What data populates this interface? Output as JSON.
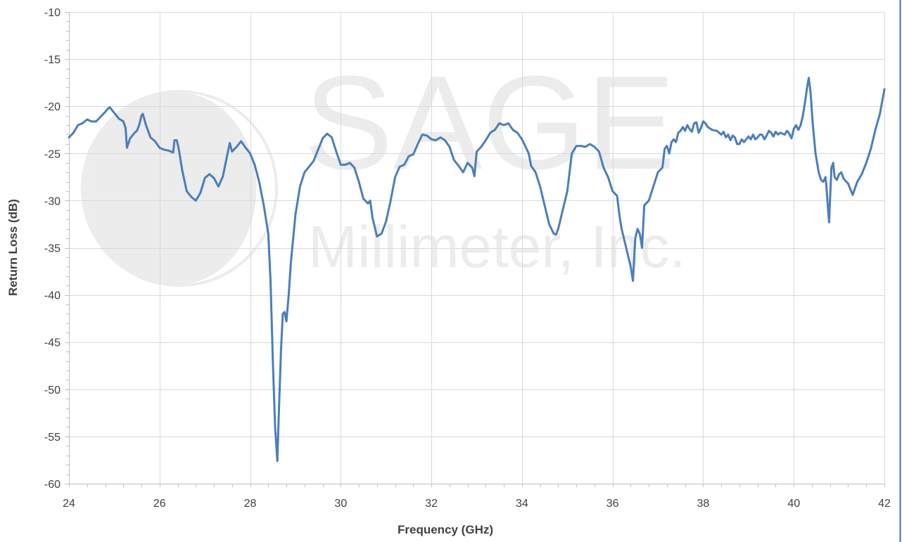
{
  "chart_data": {
    "type": "line",
    "title": "",
    "xlabel": "Frequency (GHz)",
    "ylabel": "Return Loss (dB)",
    "xlim": [
      24,
      42
    ],
    "ylim": [
      -60,
      -10
    ],
    "x_ticks": [
      24,
      26,
      28,
      30,
      32,
      34,
      36,
      38,
      40,
      42
    ],
    "y_ticks": [
      -10,
      -15,
      -20,
      -25,
      -30,
      -35,
      -40,
      -45,
      -50,
      -55,
      -60
    ],
    "grid": true,
    "legend": "none",
    "series": [
      {
        "color": "#4a7ebb",
        "points": [
          [
            24.0,
            -23.3
          ],
          [
            24.1,
            -22.8
          ],
          [
            24.2,
            -22.0
          ],
          [
            24.3,
            -21.8
          ],
          [
            24.4,
            -21.4
          ],
          [
            24.5,
            -21.6
          ],
          [
            24.6,
            -21.6
          ],
          [
            24.7,
            -21.1
          ],
          [
            24.8,
            -20.6
          ],
          [
            24.85,
            -20.3
          ],
          [
            24.9,
            -20.1
          ],
          [
            25.0,
            -20.7
          ],
          [
            25.1,
            -21.3
          ],
          [
            25.2,
            -21.6
          ],
          [
            25.25,
            -22.3
          ],
          [
            25.28,
            -24.4
          ],
          [
            25.35,
            -23.4
          ],
          [
            25.45,
            -22.8
          ],
          [
            25.5,
            -22.6
          ],
          [
            25.55,
            -22.0
          ],
          [
            25.6,
            -21.0
          ],
          [
            25.63,
            -20.8
          ],
          [
            25.7,
            -22.0
          ],
          [
            25.8,
            -23.3
          ],
          [
            25.9,
            -23.7
          ],
          [
            26.0,
            -24.4
          ],
          [
            26.1,
            -24.6
          ],
          [
            26.2,
            -24.7
          ],
          [
            26.3,
            -24.9
          ],
          [
            26.33,
            -23.6
          ],
          [
            26.38,
            -23.6
          ],
          [
            26.42,
            -24.4
          ],
          [
            26.5,
            -26.8
          ],
          [
            26.6,
            -29.0
          ],
          [
            26.7,
            -29.6
          ],
          [
            26.8,
            -30.0
          ],
          [
            26.9,
            -29.2
          ],
          [
            27.0,
            -27.6
          ],
          [
            27.1,
            -27.2
          ],
          [
            27.2,
            -27.6
          ],
          [
            27.3,
            -28.5
          ],
          [
            27.4,
            -27.4
          ],
          [
            27.5,
            -25.0
          ],
          [
            27.55,
            -23.9
          ],
          [
            27.6,
            -24.8
          ],
          [
            27.7,
            -24.3
          ],
          [
            27.8,
            -23.7
          ],
          [
            27.9,
            -24.4
          ],
          [
            28.0,
            -25.0
          ],
          [
            28.1,
            -26.2
          ],
          [
            28.2,
            -28.0
          ],
          [
            28.3,
            -30.5
          ],
          [
            28.4,
            -33.5
          ],
          [
            28.45,
            -38.5
          ],
          [
            28.5,
            -47.0
          ],
          [
            28.55,
            -54.0
          ],
          [
            28.6,
            -57.6
          ],
          [
            28.63,
            -53.0
          ],
          [
            28.68,
            -46.0
          ],
          [
            28.72,
            -42.0
          ],
          [
            28.76,
            -41.8
          ],
          [
            28.8,
            -42.8
          ],
          [
            28.85,
            -40.0
          ],
          [
            28.9,
            -36.5
          ],
          [
            29.0,
            -31.5
          ],
          [
            29.1,
            -28.5
          ],
          [
            29.2,
            -27.0
          ],
          [
            29.3,
            -26.4
          ],
          [
            29.4,
            -25.8
          ],
          [
            29.5,
            -24.6
          ],
          [
            29.6,
            -23.4
          ],
          [
            29.7,
            -22.9
          ],
          [
            29.8,
            -23.3
          ],
          [
            29.9,
            -24.8
          ],
          [
            30.0,
            -26.2
          ],
          [
            30.1,
            -26.2
          ],
          [
            30.2,
            -26.0
          ],
          [
            30.3,
            -26.5
          ],
          [
            30.4,
            -28.0
          ],
          [
            30.5,
            -29.8
          ],
          [
            30.6,
            -30.3
          ],
          [
            30.65,
            -30.0
          ],
          [
            30.7,
            -31.8
          ],
          [
            30.8,
            -33.8
          ],
          [
            30.9,
            -33.5
          ],
          [
            31.0,
            -32.2
          ],
          [
            31.1,
            -30.0
          ],
          [
            31.2,
            -27.5
          ],
          [
            31.3,
            -26.4
          ],
          [
            31.4,
            -26.2
          ],
          [
            31.5,
            -25.3
          ],
          [
            31.6,
            -25.1
          ],
          [
            31.7,
            -24.0
          ],
          [
            31.8,
            -23.0
          ],
          [
            31.9,
            -23.1
          ],
          [
            32.0,
            -23.5
          ],
          [
            32.1,
            -23.6
          ],
          [
            32.2,
            -23.3
          ],
          [
            32.3,
            -23.6
          ],
          [
            32.4,
            -24.3
          ],
          [
            32.5,
            -25.7
          ],
          [
            32.6,
            -26.3
          ],
          [
            32.7,
            -27.0
          ],
          [
            32.8,
            -26.0
          ],
          [
            32.9,
            -26.5
          ],
          [
            32.95,
            -27.4
          ],
          [
            33.0,
            -24.8
          ],
          [
            33.1,
            -24.3
          ],
          [
            33.2,
            -23.6
          ],
          [
            33.3,
            -22.8
          ],
          [
            33.4,
            -22.5
          ],
          [
            33.5,
            -21.8
          ],
          [
            33.6,
            -22.0
          ],
          [
            33.7,
            -21.8
          ],
          [
            33.8,
            -22.5
          ],
          [
            33.9,
            -22.8
          ],
          [
            34.0,
            -23.5
          ],
          [
            34.1,
            -24.5
          ],
          [
            34.15,
            -25.0
          ],
          [
            34.2,
            -26.3
          ],
          [
            34.3,
            -27.0
          ],
          [
            34.4,
            -28.5
          ],
          [
            34.5,
            -30.5
          ],
          [
            34.6,
            -32.5
          ],
          [
            34.7,
            -33.5
          ],
          [
            34.75,
            -33.6
          ],
          [
            34.8,
            -33.0
          ],
          [
            34.9,
            -31.0
          ],
          [
            35.0,
            -29.0
          ],
          [
            35.05,
            -27.0
          ],
          [
            35.1,
            -25.0
          ],
          [
            35.2,
            -24.2
          ],
          [
            35.3,
            -24.2
          ],
          [
            35.4,
            -24.3
          ],
          [
            35.5,
            -24.0
          ],
          [
            35.6,
            -24.3
          ],
          [
            35.7,
            -24.8
          ],
          [
            35.8,
            -26.5
          ],
          [
            35.9,
            -27.5
          ],
          [
            36.0,
            -29.0
          ],
          [
            36.1,
            -29.5
          ],
          [
            36.15,
            -31.5
          ],
          [
            36.2,
            -33.0
          ],
          [
            36.3,
            -35.0
          ],
          [
            36.4,
            -37.0
          ],
          [
            36.45,
            -38.5
          ],
          [
            36.5,
            -34.0
          ],
          [
            36.55,
            -33.0
          ],
          [
            36.6,
            -33.5
          ],
          [
            36.65,
            -35.0
          ],
          [
            36.7,
            -30.5
          ],
          [
            36.8,
            -30.0
          ],
          [
            36.9,
            -28.5
          ],
          [
            37.0,
            -27.0
          ],
          [
            37.1,
            -26.5
          ],
          [
            37.15,
            -24.5
          ],
          [
            37.2,
            -24.2
          ],
          [
            37.25,
            -25.0
          ],
          [
            37.3,
            -23.8
          ],
          [
            37.35,
            -23.5
          ],
          [
            37.4,
            -23.8
          ],
          [
            37.45,
            -22.8
          ],
          [
            37.5,
            -22.6
          ],
          [
            37.55,
            -22.2
          ],
          [
            37.6,
            -22.6
          ],
          [
            37.65,
            -22.0
          ],
          [
            37.7,
            -22.4
          ],
          [
            37.75,
            -22.7
          ],
          [
            37.8,
            -21.8
          ],
          [
            37.85,
            -21.7
          ],
          [
            37.9,
            -22.8
          ],
          [
            37.95,
            -22.3
          ],
          [
            38.0,
            -21.6
          ],
          [
            38.05,
            -21.8
          ],
          [
            38.1,
            -22.2
          ],
          [
            38.2,
            -22.5
          ],
          [
            38.3,
            -22.6
          ],
          [
            38.4,
            -23.0
          ],
          [
            38.45,
            -22.7
          ],
          [
            38.5,
            -23.3
          ],
          [
            38.55,
            -23.0
          ],
          [
            38.6,
            -23.6
          ],
          [
            38.65,
            -23.1
          ],
          [
            38.7,
            -23.3
          ],
          [
            38.75,
            -24.0
          ],
          [
            38.8,
            -24.0
          ],
          [
            38.85,
            -23.5
          ],
          [
            38.9,
            -23.8
          ],
          [
            38.95,
            -23.5
          ],
          [
            39.0,
            -23.2
          ],
          [
            39.05,
            -23.5
          ],
          [
            39.1,
            -23.0
          ],
          [
            39.15,
            -23.5
          ],
          [
            39.2,
            -23.3
          ],
          [
            39.25,
            -23.0
          ],
          [
            39.3,
            -23.0
          ],
          [
            39.35,
            -23.5
          ],
          [
            39.4,
            -23.1
          ],
          [
            39.45,
            -22.6
          ],
          [
            39.5,
            -22.8
          ],
          [
            39.55,
            -23.2
          ],
          [
            39.6,
            -22.7
          ],
          [
            39.65,
            -23.0
          ],
          [
            39.7,
            -22.8
          ],
          [
            39.8,
            -23.0
          ],
          [
            39.85,
            -22.6
          ],
          [
            39.9,
            -22.9
          ],
          [
            39.95,
            -23.4
          ],
          [
            40.0,
            -22.4
          ],
          [
            40.05,
            -22.0
          ],
          [
            40.1,
            -22.5
          ],
          [
            40.15,
            -22.0
          ],
          [
            40.2,
            -21.0
          ],
          [
            40.25,
            -19.5
          ],
          [
            40.3,
            -17.8
          ],
          [
            40.33,
            -17.0
          ],
          [
            40.37,
            -18.5
          ],
          [
            40.42,
            -22.0
          ],
          [
            40.48,
            -25.0
          ],
          [
            40.55,
            -27.0
          ],
          [
            40.6,
            -27.8
          ],
          [
            40.65,
            -28.0
          ],
          [
            40.7,
            -27.5
          ],
          [
            40.72,
            -28.5
          ],
          [
            40.75,
            -30.5
          ],
          [
            40.78,
            -32.3
          ],
          [
            40.8,
            -30.0
          ],
          [
            40.83,
            -26.5
          ],
          [
            40.87,
            -26.0
          ],
          [
            40.9,
            -27.5
          ],
          [
            40.95,
            -27.8
          ],
          [
            41.0,
            -27.2
          ],
          [
            41.05,
            -27.0
          ],
          [
            41.1,
            -27.7
          ],
          [
            41.2,
            -28.2
          ],
          [
            41.3,
            -29.4
          ],
          [
            41.4,
            -28.0
          ],
          [
            41.5,
            -27.2
          ],
          [
            41.6,
            -26.0
          ],
          [
            41.7,
            -24.5
          ],
          [
            41.8,
            -22.5
          ],
          [
            41.9,
            -20.8
          ],
          [
            42.0,
            -18.2
          ]
        ]
      }
    ]
  },
  "watermark": {
    "text_large": "SAGE",
    "text_small": "Millimeter, Inc.",
    "color": "#000000"
  },
  "colors": {
    "line": "#4a7ebb",
    "grid": "#d9d9d9",
    "axis": "#bfbfbf",
    "text": "#404040",
    "frame": "#3f6fa6"
  }
}
